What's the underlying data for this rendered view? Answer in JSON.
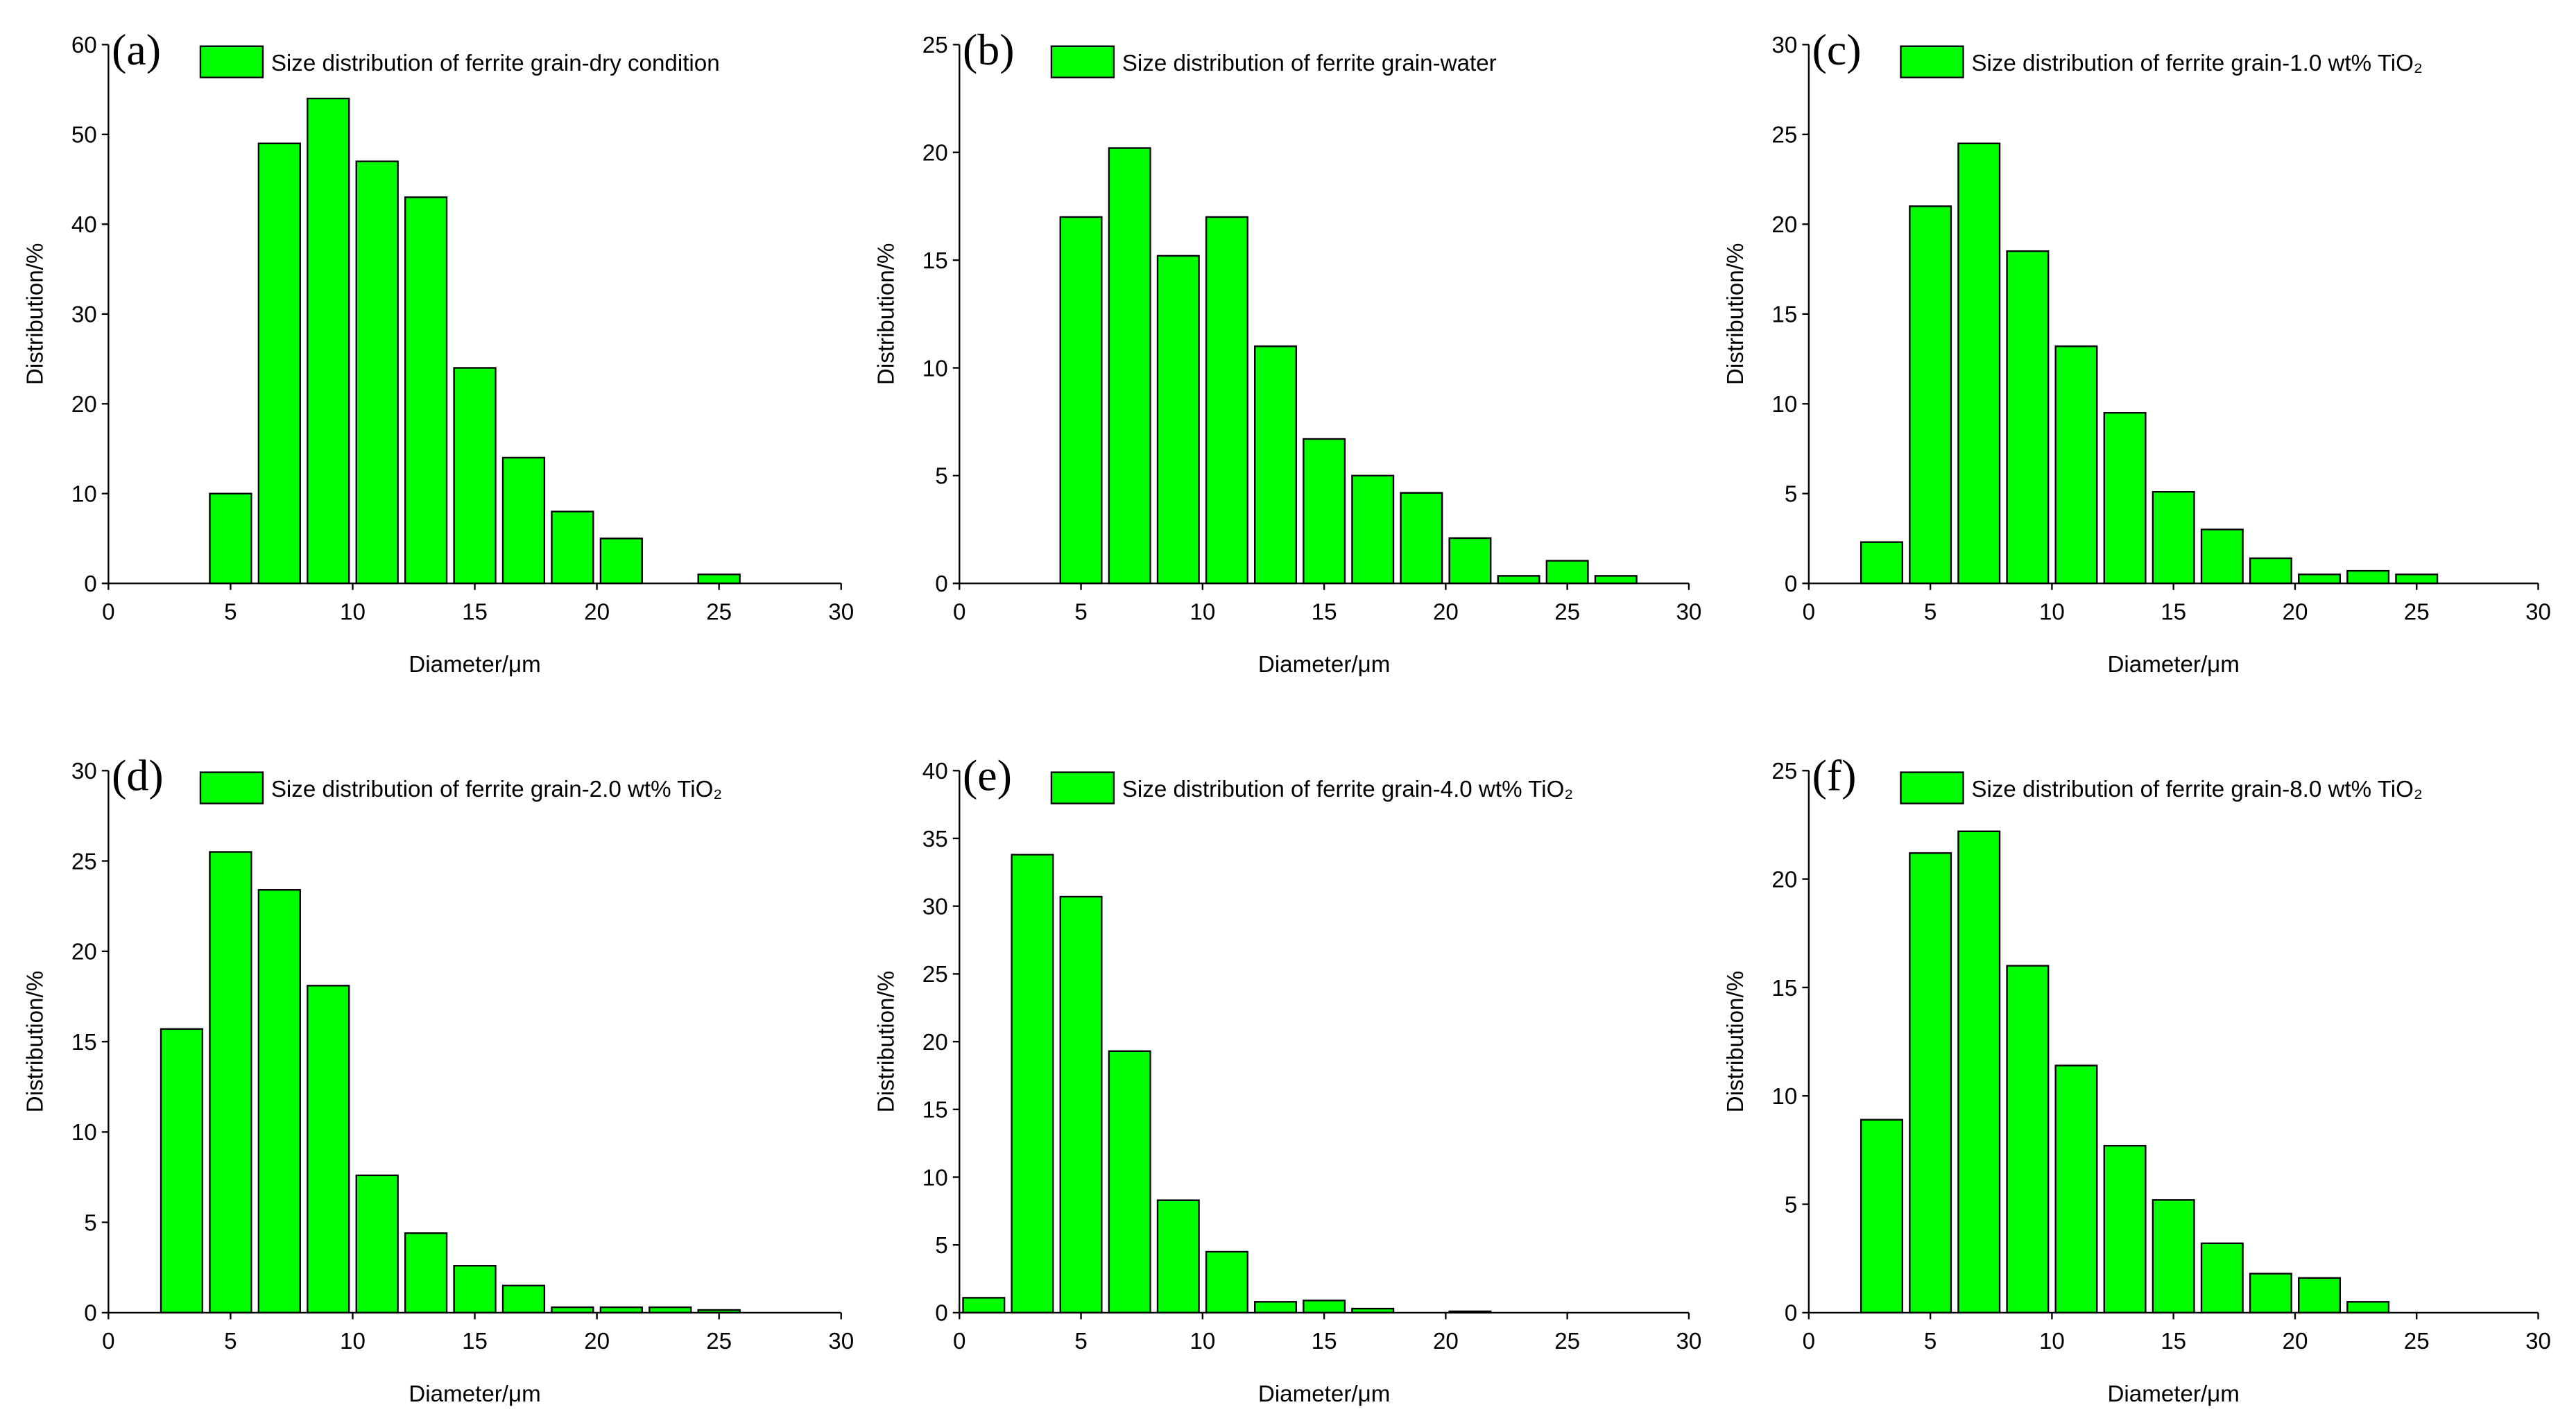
{
  "chart_data": [
    {
      "type": "bar",
      "panel_label": "(a)",
      "xlabel": "Diameter/μm",
      "ylabel": "Distribution/%",
      "x": [
        5,
        7,
        9,
        11,
        13,
        15,
        17,
        19,
        21,
        23,
        25
      ],
      "series": [
        {
          "name": "Size distribution of ferrite grain-dry condition",
          "color": "#00ff00",
          "values": [
            10,
            49,
            54,
            47,
            43,
            24,
            14,
            8,
            5,
            0,
            1
          ]
        }
      ],
      "xlim": [
        0,
        30
      ],
      "xticks": [
        0,
        5,
        10,
        15,
        20,
        25,
        30
      ],
      "ylim": [
        0,
        60
      ],
      "yticks": [
        0,
        10,
        20,
        30,
        40,
        50,
        60
      ]
    },
    {
      "type": "bar",
      "panel_label": "(b)",
      "xlabel": "Diameter/μm",
      "ylabel": "Distribution/%",
      "x": [
        5,
        7,
        9,
        11,
        13,
        15,
        17,
        19,
        21,
        23,
        25,
        27
      ],
      "series": [
        {
          "name": "Size distribution of ferrite grain-water",
          "color": "#00ff00",
          "values": [
            17,
            20.2,
            15.2,
            17,
            11,
            6.7,
            5,
            4.2,
            2.1,
            0.35,
            1.05,
            0.35
          ]
        }
      ],
      "xlim": [
        0,
        30
      ],
      "xticks": [
        0,
        5,
        10,
        15,
        20,
        25,
        30
      ],
      "ylim": [
        0,
        25
      ],
      "yticks": [
        0,
        5,
        10,
        15,
        20,
        25
      ]
    },
    {
      "type": "bar",
      "panel_label": "(c)",
      "xlabel": "Diameter/μm",
      "ylabel": "Distribution/%",
      "x": [
        3,
        5,
        7,
        9,
        11,
        13,
        15,
        17,
        19,
        21,
        23,
        25
      ],
      "series": [
        {
          "name": "Size distribution of ferrite grain-1.0 wt% TiO₂",
          "color": "#00ff00",
          "values": [
            2.3,
            21,
            24.5,
            18.5,
            13.2,
            9.5,
            5.1,
            3,
            1.4,
            0.5,
            0.7,
            0.5
          ]
        }
      ],
      "xlim": [
        0,
        30
      ],
      "xticks": [
        0,
        5,
        10,
        15,
        20,
        25,
        30
      ],
      "ylim": [
        0,
        30
      ],
      "yticks": [
        0,
        5,
        10,
        15,
        20,
        25,
        30
      ]
    },
    {
      "type": "bar",
      "panel_label": "(d)",
      "xlabel": "Diameter/μm",
      "ylabel": "Distribution/%",
      "x": [
        3,
        5,
        7,
        9,
        11,
        13,
        15,
        17,
        19,
        21,
        23,
        25
      ],
      "series": [
        {
          "name": "Size distribution of ferrite grain-2.0 wt% TiO₂",
          "color": "#00ff00",
          "values": [
            15.7,
            25.5,
            23.4,
            18.1,
            7.6,
            4.4,
            2.6,
            1.5,
            0.3,
            0.3,
            0.3,
            0.15
          ]
        }
      ],
      "xlim": [
        0,
        30
      ],
      "xticks": [
        0,
        5,
        10,
        15,
        20,
        25,
        30
      ],
      "ylim": [
        0,
        30
      ],
      "yticks": [
        0,
        5,
        10,
        15,
        20,
        25,
        30
      ]
    },
    {
      "type": "bar",
      "panel_label": "(e)",
      "xlabel": "Diameter/μm",
      "ylabel": "Distribution/%",
      "x": [
        1,
        3,
        5,
        7,
        9,
        11,
        13,
        15,
        17,
        19,
        21
      ],
      "series": [
        {
          "name": "Size distribution of ferrite grain-4.0 wt% TiO₂",
          "color": "#00ff00",
          "values": [
            1.1,
            33.8,
            30.7,
            19.3,
            8.3,
            4.5,
            0.8,
            0.9,
            0.3,
            0,
            0.1
          ]
        }
      ],
      "xlim": [
        0,
        30
      ],
      "xticks": [
        0,
        5,
        10,
        15,
        20,
        25,
        30
      ],
      "ylim": [
        0,
        40
      ],
      "yticks": [
        0,
        5,
        10,
        15,
        20,
        25,
        30,
        35,
        40
      ]
    },
    {
      "type": "bar",
      "panel_label": "(f)",
      "xlabel": "Diameter/μm",
      "ylabel": "Distribution/%",
      "x": [
        3,
        5,
        7,
        9,
        11,
        13,
        15,
        17,
        19,
        21,
        23
      ],
      "series": [
        {
          "name": "Size distribution of ferrite grain-8.0 wt% TiO₂",
          "color": "#00ff00",
          "values": [
            8.9,
            21.2,
            22.2,
            16,
            11.4,
            7.7,
            5.2,
            3.2,
            1.8,
            1.6,
            0.5
          ]
        }
      ],
      "xlim": [
        0,
        30
      ],
      "xticks": [
        0,
        5,
        10,
        15,
        20,
        25,
        30
      ],
      "ylim": [
        0,
        25
      ],
      "yticks": [
        0,
        5,
        10,
        15,
        20,
        25
      ]
    }
  ]
}
